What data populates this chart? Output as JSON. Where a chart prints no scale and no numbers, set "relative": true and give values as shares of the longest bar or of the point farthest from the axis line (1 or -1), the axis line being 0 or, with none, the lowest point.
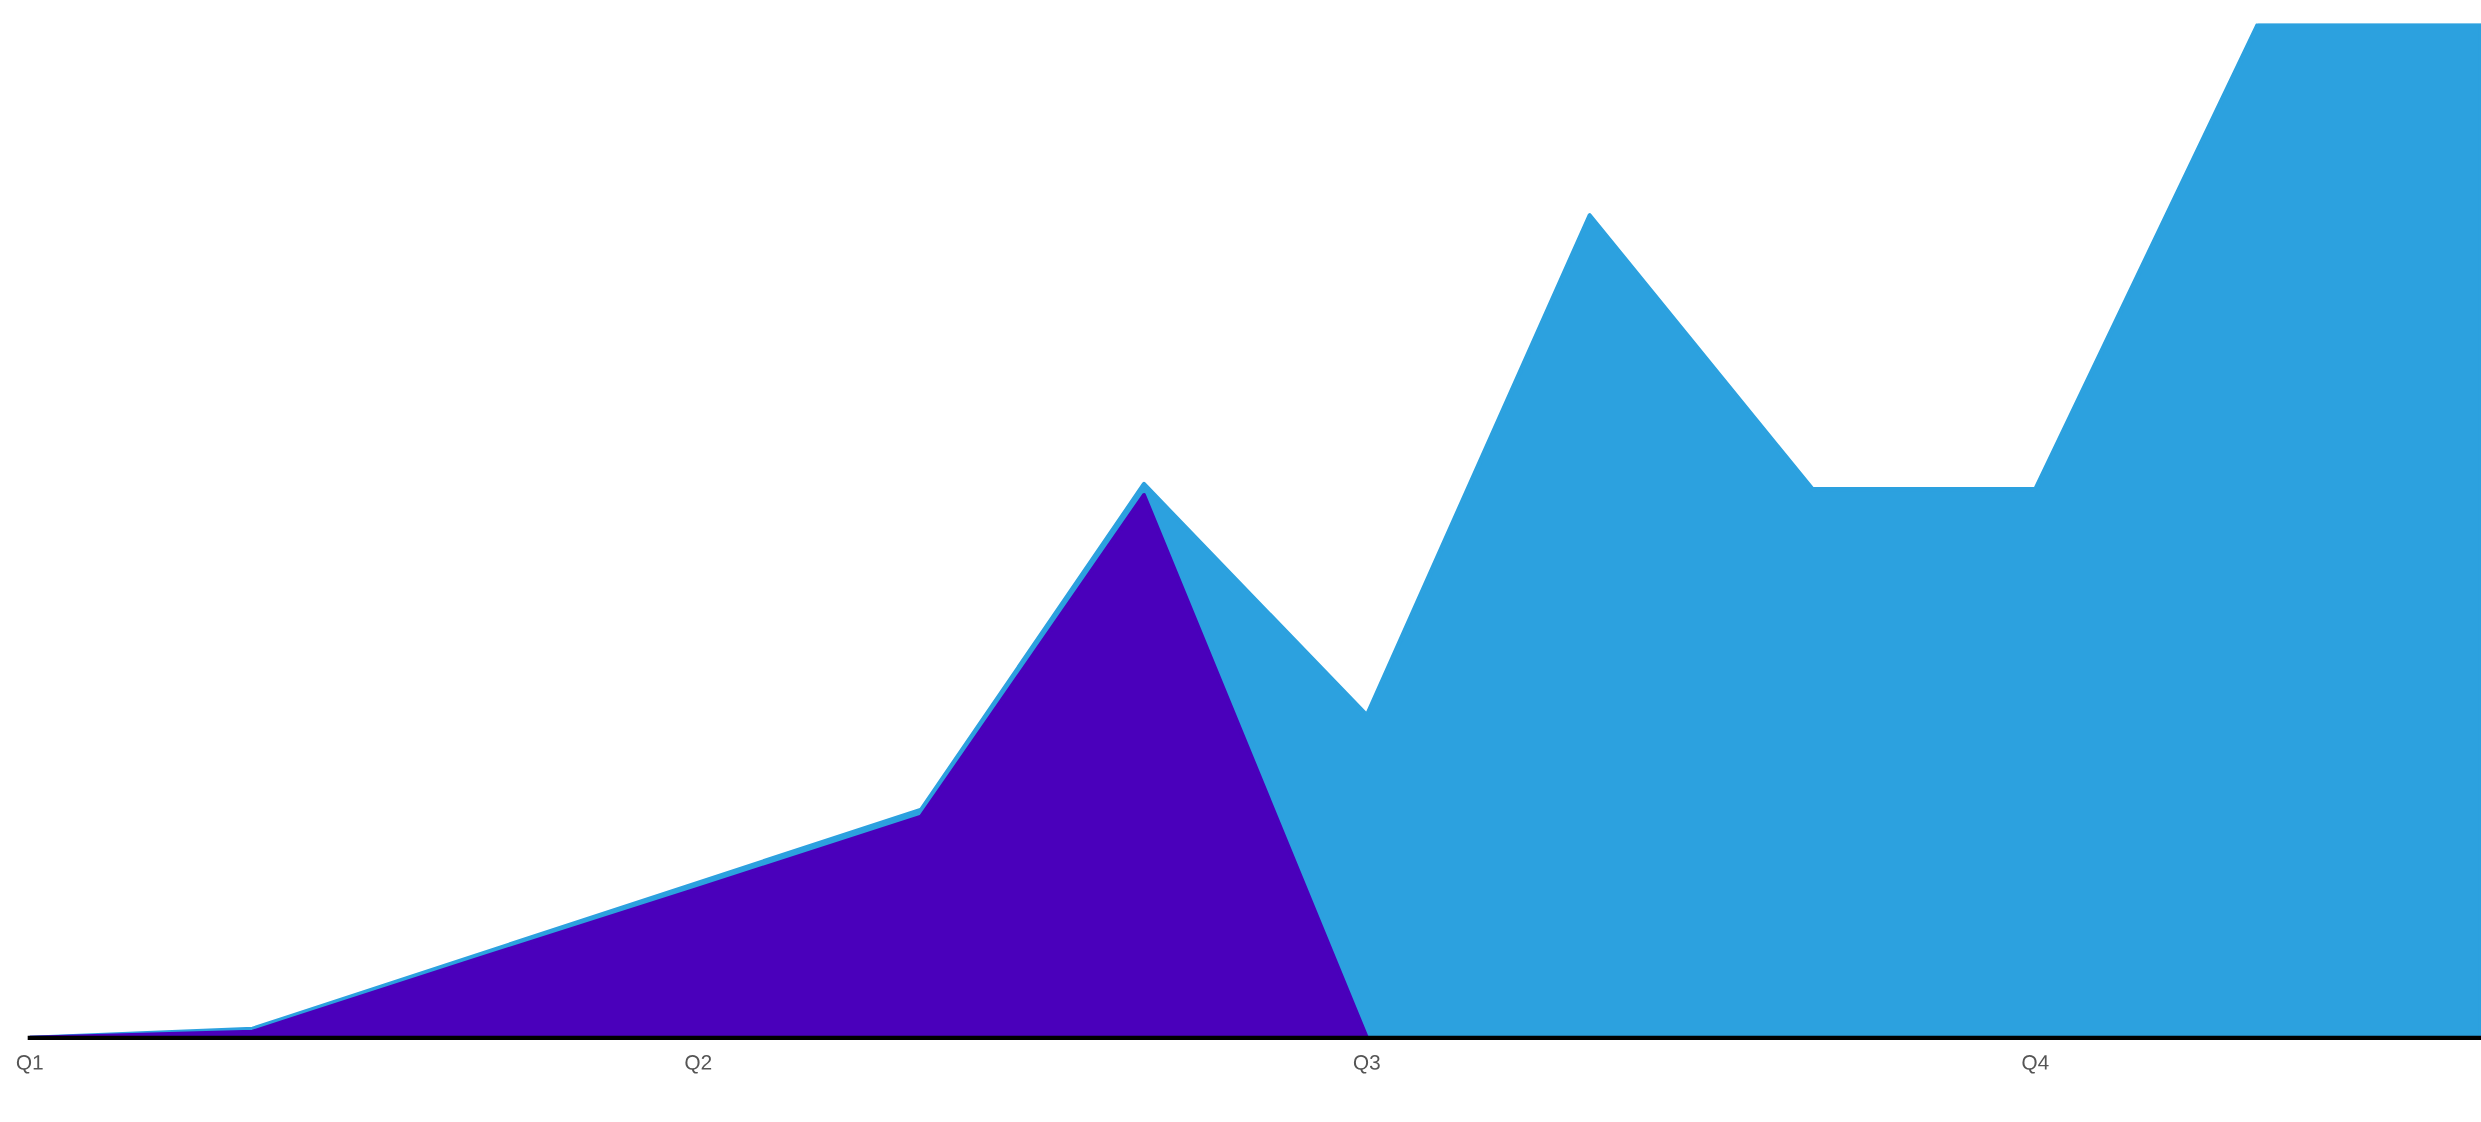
{
  "chart_data": {
    "type": "area",
    "relative": true,
    "categories": [
      "Q1",
      null,
      null,
      "Q2",
      null,
      null,
      "Q3",
      null,
      null,
      "Q4",
      null,
      null
    ],
    "grid": false,
    "legend": false,
    "series": [
      {
        "color": "#2ca1df",
        "values": [
          0,
          0.009,
          0.081,
          0.153,
          0.225,
          0.546,
          0.318,
          0.811,
          0.541,
          0.541,
          1.0,
          1.0
        ]
      },
      {
        "color": "#4a00bb",
        "values": [
          0,
          0.006,
          0.077,
          0.147,
          0.218,
          0.535,
          0,
          null,
          null,
          null,
          null,
          null
        ]
      }
    ]
  }
}
